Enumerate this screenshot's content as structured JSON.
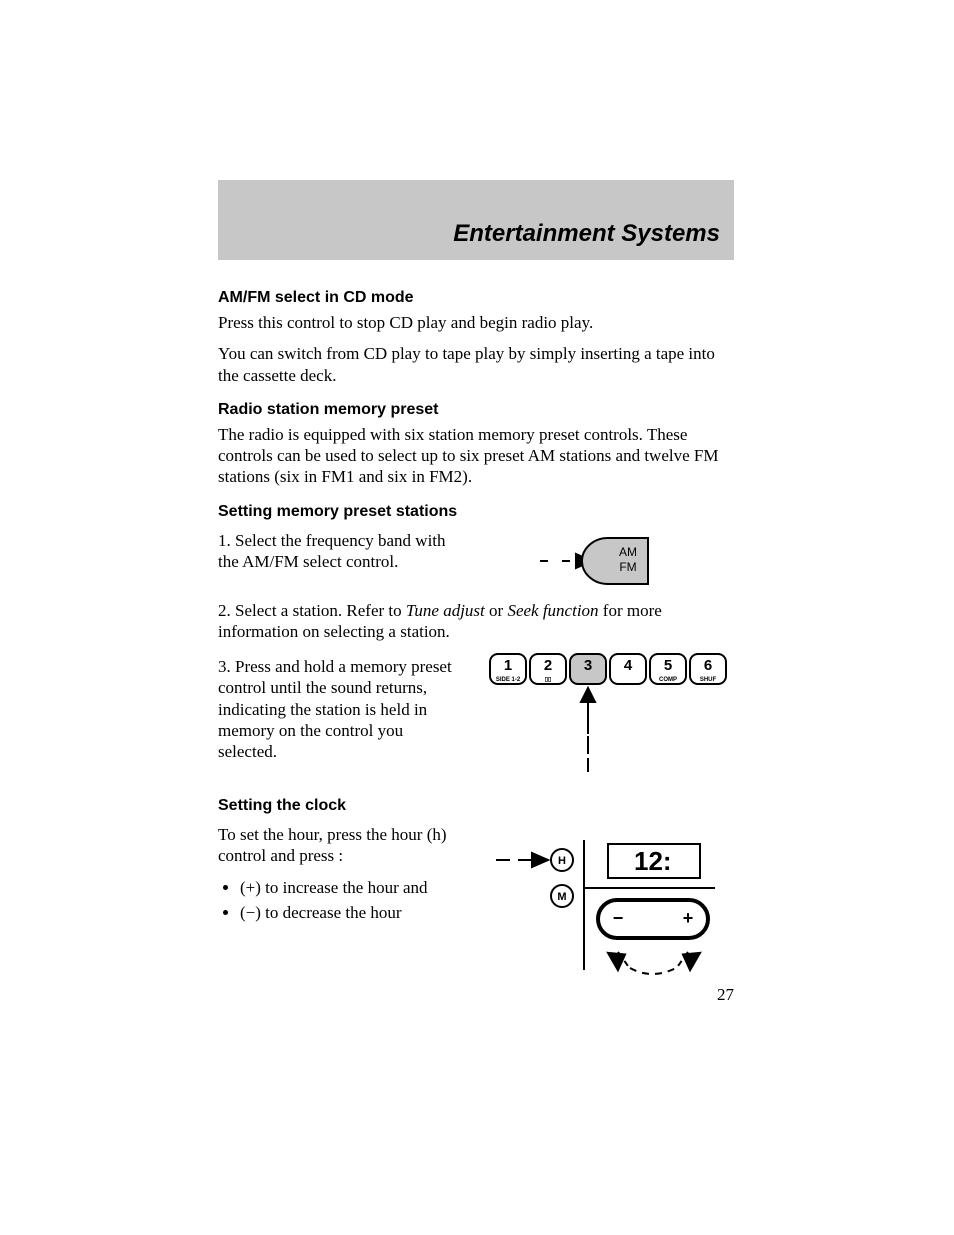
{
  "header": {
    "title": "Entertainment Systems"
  },
  "sections": {
    "amfm_cd": {
      "heading": "AM/FM select in CD mode",
      "p1": "Press this control to stop CD play and begin radio play.",
      "p2": "You can switch from CD play to tape play by simply inserting a tape into the cassette deck."
    },
    "radio_preset": {
      "heading": "Radio station memory preset",
      "p1": "The radio is equipped with six station memory preset controls. These controls can be used to select up to six preset AM stations and twelve FM stations (six in FM1 and six in FM2)."
    },
    "set_preset": {
      "heading": "Setting memory preset stations",
      "step1": "1. Select the frequency band with the AM/FM select control.",
      "step2_a": "2. Select a station. Refer to ",
      "step2_tune": "Tune adjust",
      "step2_or": " or ",
      "step2_seek": "Seek function",
      "step2_b": " for more information on selecting a station.",
      "step3": "3. Press and hold a memory preset control until the sound returns, indicating the station is held in memory on the control you selected.",
      "amfm_button": {
        "line1": "AM",
        "line2": "FM",
        "fill": "#c7c7c7",
        "stroke": "#000000"
      },
      "preset_buttons": {
        "labels": [
          "1",
          "2",
          "3",
          "4",
          "5",
          "6"
        ],
        "sublabels": [
          "SIDE 1-2",
          "▯▯",
          "",
          "",
          "COMP",
          "SHUF"
        ],
        "highlight_index": 2,
        "fill": "#ffffff",
        "highlight_fill": "#c7c7c7",
        "stroke": "#000000",
        "button_radius": 8
      }
    },
    "set_clock": {
      "heading": "Setting the clock",
      "intro": "To set the hour, press the hour (h) control and press :",
      "b1": "(+) to increase the hour and",
      "b2": "(−) to decrease the hour",
      "clock": {
        "h_label": "H",
        "m_label": "M",
        "display": "12:",
        "minus": "−",
        "plus": "+",
        "fill": "#ffffff",
        "stroke": "#000000"
      }
    }
  },
  "page_number": "27",
  "colors": {
    "band": "#c7c7c7",
    "text": "#000000",
    "bg": "#ffffff"
  },
  "typography": {
    "body_font": "Times New Roman",
    "body_size_pt": 12,
    "heading_font": "Arial",
    "heading_size_pt": 11,
    "title_size_pt": 18
  }
}
